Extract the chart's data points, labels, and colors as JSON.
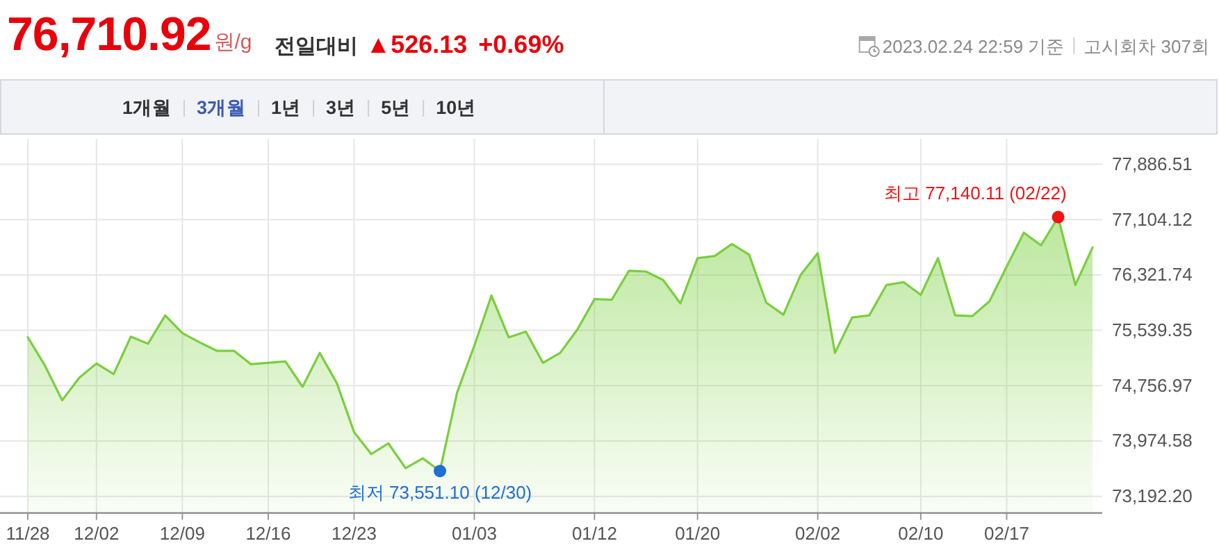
{
  "chart_data": {
    "type": "area",
    "title": "76,710.92",
    "subtitle": "원/g",
    "categories": [
      "11/28",
      null,
      null,
      null,
      "12/02",
      null,
      null,
      null,
      null,
      "12/09",
      null,
      null,
      null,
      null,
      "12/16",
      null,
      null,
      null,
      null,
      "12/23",
      null,
      null,
      null,
      null,
      null,
      null,
      "01/03",
      null,
      null,
      null,
      null,
      null,
      null,
      "01/12",
      null,
      null,
      null,
      null,
      null,
      "01/20",
      null,
      null,
      null,
      null,
      null,
      null,
      "02/02",
      null,
      null,
      null,
      null,
      null,
      "02/10",
      null,
      null,
      null,
      null,
      "02/17",
      null,
      null,
      null,
      null,
      null
    ],
    "series": [
      {
        "color": "#79cf3c",
        "values": [
          75440,
          75040,
          74550,
          74870,
          75070,
          74920,
          75450,
          75350,
          75750,
          75500,
          75370,
          75250,
          75250,
          75060,
          75080,
          75100,
          74740,
          75220,
          74790,
          74100,
          73790,
          73940,
          73590,
          73730,
          73550,
          74660,
          75320,
          76030,
          75440,
          75520,
          75080,
          75220,
          75550,
          75980,
          75970,
          76380,
          76370,
          76250,
          75920,
          76560,
          76590,
          76760,
          76610,
          75930,
          75760,
          76320,
          76630,
          75220,
          75720,
          75750,
          76180,
          76220,
          76040,
          76560,
          75750,
          75740,
          75950,
          76440,
          76920,
          76740,
          77140,
          76180,
          76710
        ]
      },
      {
        "type": "scatter",
        "color": "#f01414",
        "values": [
          null,
          null,
          null,
          null,
          null,
          null,
          null,
          null,
          null,
          null,
          null,
          null,
          null,
          null,
          null,
          null,
          null,
          null,
          null,
          null,
          null,
          null,
          null,
          null,
          null,
          null,
          null,
          null,
          null,
          null,
          null,
          null,
          null,
          null,
          null,
          null,
          null,
          null,
          null,
          null,
          null,
          null,
          null,
          null,
          null,
          null,
          null,
          null,
          null,
          null,
          null,
          null,
          null,
          null,
          null,
          null,
          null,
          null,
          null,
          null,
          77140,
          null,
          null
        ]
      },
      {
        "type": "scatter",
        "color": "#1f6fd8",
        "values": [
          null,
          null,
          null,
          null,
          null,
          null,
          null,
          null,
          null,
          null,
          null,
          null,
          null,
          null,
          null,
          null,
          null,
          null,
          null,
          null,
          null,
          null,
          null,
          null,
          73550,
          null,
          null,
          null,
          null,
          null,
          null,
          null,
          null,
          null,
          null,
          null,
          null,
          null,
          null,
          null,
          null,
          null,
          null,
          null,
          null,
          null,
          null,
          null,
          null,
          null,
          null,
          null,
          null,
          null,
          null,
          null,
          null,
          null,
          null,
          null,
          null,
          null,
          null
        ]
      }
    ],
    "ylim": [
      72957,
      78245
    ],
    "yticks": [
      {
        "value": 73192.2,
        "label": "73,192.20"
      },
      {
        "value": 73974.58,
        "label": "73,974.58"
      },
      {
        "value": 74756.97,
        "label": "74,756.97"
      },
      {
        "value": 75539.35,
        "label": "75,539.35"
      },
      {
        "value": 76321.74,
        "label": "76,321.74"
      },
      {
        "value": 77104.12,
        "label": "77,104.12"
      },
      {
        "value": 77886.51,
        "label": "77,886.51"
      }
    ],
    "grid": true,
    "annotations": [
      "전일대비",
      "▲526.13",
      "+0.69%",
      "2023.02.24 22:59 기준",
      "고시회차 307회",
      "1개월",
      "3개월",
      "1년",
      "3년",
      "5년",
      "10년",
      "최고 77,140.11 (02/22)",
      "최저 73,551.10 (12/30)"
    ]
  }
}
